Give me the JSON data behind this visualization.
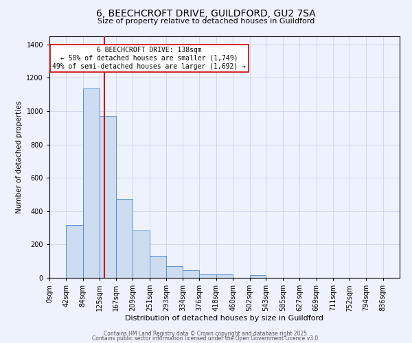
{
  "title": "6, BEECHCROFT DRIVE, GUILDFORD, GU2 7SA",
  "subtitle": "Size of property relative to detached houses in Guildford",
  "xlabel": "Distribution of detached houses by size in Guildford",
  "ylabel": "Number of detached properties",
  "bar_labels": [
    "0sqm",
    "42sqm",
    "84sqm",
    "125sqm",
    "167sqm",
    "209sqm",
    "251sqm",
    "293sqm",
    "334sqm",
    "376sqm",
    "418sqm",
    "460sqm",
    "502sqm",
    "543sqm",
    "585sqm",
    "627sqm",
    "669sqm",
    "711sqm",
    "752sqm",
    "794sqm",
    "836sqm"
  ],
  "bar_values": [
    0,
    315,
    1135,
    970,
    475,
    285,
    130,
    68,
    45,
    20,
    20,
    0,
    15,
    0,
    0,
    0,
    0,
    0,
    0,
    0,
    0
  ],
  "bin_edges": [
    0,
    42,
    84,
    125,
    167,
    209,
    251,
    293,
    334,
    376,
    418,
    460,
    502,
    543,
    585,
    627,
    669,
    711,
    752,
    794,
    836,
    878
  ],
  "bar_color": "#cddcf0",
  "bar_edge_color": "#5b8fcc",
  "vline_x": 138,
  "vline_color": "#cc0000",
  "annotation_text": "6 BEECHCROFT DRIVE: 138sqm\n← 50% of detached houses are smaller (1,749)\n49% of semi-detached houses are larger (1,692) →",
  "annotation_box_facecolor": "#ffffff",
  "annotation_box_edgecolor": "#cc0000",
  "ylim": [
    0,
    1450
  ],
  "yticks": [
    0,
    200,
    400,
    600,
    800,
    1000,
    1200,
    1400
  ],
  "footer1": "Contains HM Land Registry data © Crown copyright and database right 2025.",
  "footer2": "Contains public sector information licensed under the Open Government Licence v3.0.",
  "background_color": "#eef2fc",
  "plot_bg_color": "#eef2fc",
  "title_fontsize": 10,
  "subtitle_fontsize": 8,
  "xlabel_fontsize": 8,
  "ylabel_fontsize": 7.5,
  "tick_fontsize": 7,
  "annotation_fontsize": 7,
  "footer_fontsize": 5.5
}
